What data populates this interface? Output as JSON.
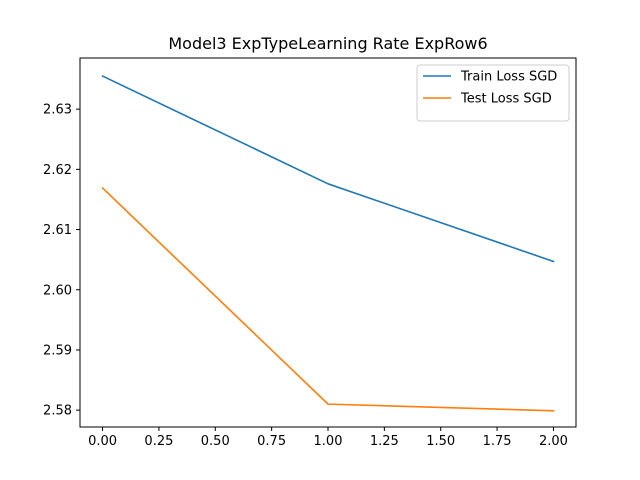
{
  "chart_data": {
    "type": "line",
    "title": "Model3 ExpTypeLearning Rate ExpRow6",
    "xlabel": "",
    "ylabel": "",
    "x": [
      0,
      1,
      2
    ],
    "xlim": [
      -0.1,
      2.1
    ],
    "ylim": [
      2.5772,
      2.6385
    ],
    "xticks": [
      "0.00",
      "0.25",
      "0.50",
      "0.75",
      "1.00",
      "1.25",
      "1.50",
      "1.75",
      "2.00"
    ],
    "yticks": [
      "2.58",
      "2.59",
      "2.60",
      "2.61",
      "2.62",
      "2.63"
    ],
    "grid": false,
    "legend_position": "top-right",
    "series": [
      {
        "name": "Train Loss SGD",
        "color": "#1f77b4",
        "values": [
          2.6355,
          2.6176,
          2.6047
        ]
      },
      {
        "name": "Test Loss SGD",
        "color": "#ff7f0e",
        "values": [
          2.6169,
          2.581,
          2.5799
        ]
      }
    ]
  }
}
